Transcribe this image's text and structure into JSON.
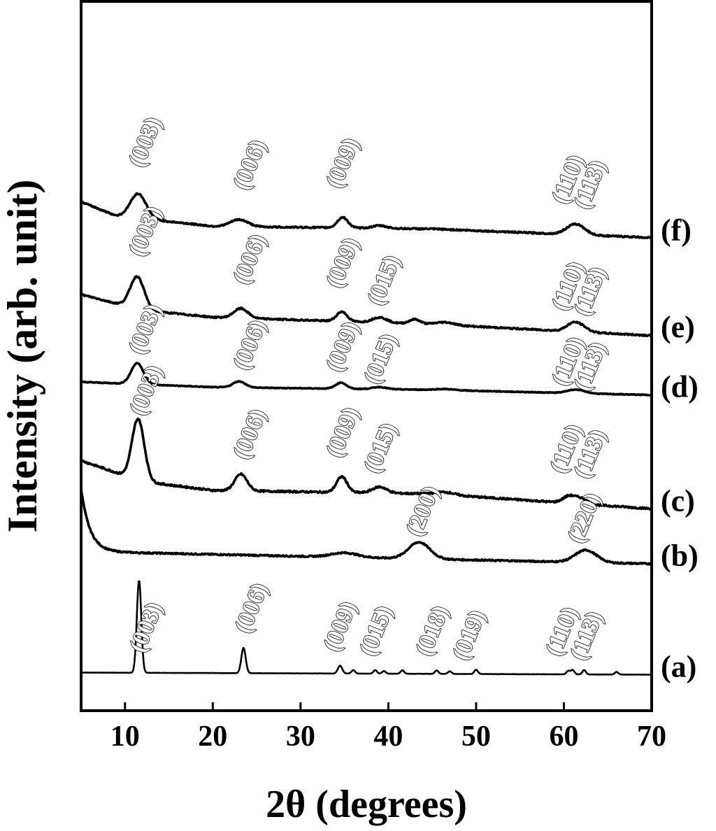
{
  "chart_data": {
    "type": "line",
    "xlabel": "2θ (degrees)",
    "ylabel": "Intensity (arb. unit)",
    "xlim": [
      5,
      70
    ],
    "xticks": [
      10,
      20,
      30,
      40,
      50,
      60,
      70
    ],
    "grid": false,
    "legend": "none",
    "series": [
      {
        "name": "(a)",
        "offset": 0,
        "baseline": [
          [
            5,
            0.18
          ],
          [
            70,
            0.06
          ]
        ],
        "noise": 0.005,
        "peaks": [
          {
            "x": 11.6,
            "h": 5.3,
            "w": 0.25
          },
          {
            "x": 23.5,
            "h": 1.45,
            "w": 0.25
          },
          {
            "x": 34.5,
            "h": 0.45,
            "w": 0.25
          },
          {
            "x": 36.0,
            "h": 0.2,
            "w": 0.2
          },
          {
            "x": 38.5,
            "h": 0.2,
            "w": 0.2
          },
          {
            "x": 39.5,
            "h": 0.15,
            "w": 0.2
          },
          {
            "x": 41.6,
            "h": 0.2,
            "w": 0.2
          },
          {
            "x": 45.5,
            "h": 0.2,
            "w": 0.2
          },
          {
            "x": 47.0,
            "h": 0.15,
            "w": 0.2
          },
          {
            "x": 50.0,
            "h": 0.25,
            "w": 0.2
          },
          {
            "x": 60.5,
            "h": 0.2,
            "w": 0.2
          },
          {
            "x": 61.0,
            "h": 0.25,
            "w": 0.2
          },
          {
            "x": 62.3,
            "h": 0.25,
            "w": 0.2
          },
          {
            "x": 66.0,
            "h": 0.15,
            "w": 0.2
          }
        ],
        "labels": [
          {
            "text": "(003)",
            "x": 12.1,
            "y": 1.25
          },
          {
            "text": "(006)",
            "x": 24.1,
            "y": 2.35
          },
          {
            "text": "(009)",
            "x": 34.2,
            "y": 1.3
          },
          {
            "text": "(015)",
            "x": 38.3,
            "y": 1.05
          },
          {
            "text": "(018)",
            "x": 44.7,
            "y": 1.05
          },
          {
            "text": "(019)",
            "x": 48.9,
            "y": 0.8
          },
          {
            "text": "(110)",
            "x": 59.5,
            "y": 1.05
          },
          {
            "text": "(113)",
            "x": 62.3,
            "y": 0.8
          }
        ]
      },
      {
        "name": "(b)",
        "offset": 7.0,
        "baseline": [
          [
            5,
            0.1
          ],
          [
            70,
            -0.6
          ]
        ],
        "noise": 0.04,
        "decay": {
          "amp": 3.6,
          "tau": 1.0
        },
        "peaks": [
          {
            "x": 35.0,
            "h": 0.25,
            "w": 1.5
          },
          {
            "x": 43.5,
            "h": 0.95,
            "w": 1.2
          },
          {
            "x": 62.5,
            "h": 0.7,
            "w": 1.2
          }
        ],
        "labels": [
          {
            "text": "(200)",
            "x": 43.6,
            "y": 7.9
          },
          {
            "text": "(220)",
            "x": 62.0,
            "y": 7.5
          }
        ]
      },
      {
        "name": "(c)",
        "offset": 10.1,
        "baseline": [
          [
            5,
            2.2
          ],
          [
            12,
            1.0
          ],
          [
            20,
            0.5
          ],
          [
            45,
            0.3
          ],
          [
            70,
            -0.55
          ]
        ],
        "noise": 0.05,
        "peaks": [
          {
            "x": 11.5,
            "h": 3.5,
            "w": 0.7
          },
          {
            "x": 23.2,
            "h": 0.95,
            "w": 0.7
          },
          {
            "x": 34.7,
            "h": 0.9,
            "w": 0.6
          },
          {
            "x": 39.0,
            "h": 0.35,
            "w": 0.8
          },
          {
            "x": 46.5,
            "h": 0.15,
            "w": 1.0
          },
          {
            "x": 60.6,
            "h": 0.4,
            "w": 0.7
          },
          {
            "x": 62.0,
            "h": 0.3,
            "w": 0.7
          }
        ],
        "labels": [
          {
            "text": "(003)",
            "x": 12.1,
            "y": 14.8
          },
          {
            "text": "(006)",
            "x": 23.9,
            "y": 12.3
          },
          {
            "text": "(009)",
            "x": 34.5,
            "y": 12.4
          },
          {
            "text": "(015)",
            "x": 38.8,
            "y": 11.5
          },
          {
            "text": "(110)",
            "x": 60.0,
            "y": 11.5
          },
          {
            "text": "(113)",
            "x": 62.7,
            "y": 11.2
          }
        ]
      },
      {
        "name": "(d)",
        "offset": 16.1,
        "baseline": [
          [
            5,
            0.7
          ],
          [
            20,
            0.4
          ],
          [
            45,
            0.25
          ],
          [
            70,
            -0.05
          ]
        ],
        "noise": 0.02,
        "peaks": [
          {
            "x": 11.4,
            "h": 1.2,
            "w": 0.7
          },
          {
            "x": 23.0,
            "h": 0.35,
            "w": 0.7
          },
          {
            "x": 34.6,
            "h": 0.35,
            "w": 0.6
          },
          {
            "x": 39.0,
            "h": 0.12,
            "w": 0.8
          },
          {
            "x": 46.5,
            "h": 0.06,
            "w": 1.0
          },
          {
            "x": 61.0,
            "h": 0.15,
            "w": 0.8
          },
          {
            "x": 62.0,
            "h": 0.1,
            "w": 0.8
          }
        ],
        "labels": [
          {
            "text": "(003)",
            "x": 12.0,
            "y": 18.3
          },
          {
            "text": "(006)",
            "x": 23.9,
            "y": 17.4
          },
          {
            "text": "(009)",
            "x": 34.5,
            "y": 17.3
          },
          {
            "text": "(015)",
            "x": 38.8,
            "y": 16.6
          },
          {
            "text": "(110)",
            "x": 60.2,
            "y": 16.5
          },
          {
            "text": "(113)",
            "x": 62.7,
            "y": 16.2
          }
        ]
      },
      {
        "name": "(e)",
        "offset": 19.5,
        "baseline": [
          [
            5,
            2.3
          ],
          [
            12,
            1.4
          ],
          [
            20,
            1.0
          ],
          [
            45,
            0.6
          ],
          [
            70,
            -0.05
          ]
        ],
        "noise": 0.04,
        "peaks": [
          {
            "x": 11.4,
            "h": 1.85,
            "w": 0.8
          },
          {
            "x": 23.2,
            "h": 0.55,
            "w": 0.8
          },
          {
            "x": 34.7,
            "h": 0.55,
            "w": 0.6
          },
          {
            "x": 39.0,
            "h": 0.3,
            "w": 0.8
          },
          {
            "x": 43.0,
            "h": 0.25,
            "w": 0.6
          },
          {
            "x": 46.5,
            "h": 0.15,
            "w": 1.0
          },
          {
            "x": 61.0,
            "h": 0.4,
            "w": 0.8
          },
          {
            "x": 62.0,
            "h": 0.25,
            "w": 0.8
          }
        ],
        "labels": [
          {
            "text": "(003)",
            "x": 12.0,
            "y": 23.9
          },
          {
            "text": "(006)",
            "x": 23.9,
            "y": 22.3
          },
          {
            "text": "(009)",
            "x": 34.5,
            "y": 22.1
          },
          {
            "text": "(015)",
            "x": 39.2,
            "y": 21.1
          },
          {
            "text": "(110)",
            "x": 60.2,
            "y": 20.8
          },
          {
            "text": "(113)",
            "x": 62.7,
            "y": 20.5
          }
        ]
      },
      {
        "name": "(f)",
        "offset": 25.1,
        "baseline": [
          [
            5,
            2.0
          ],
          [
            9,
            1.2
          ],
          [
            20,
            0.6
          ],
          [
            45,
            0.45
          ],
          [
            70,
            -0.05
          ]
        ],
        "noise": 0.04,
        "peaks": [
          {
            "x": 11.5,
            "h": 1.4,
            "w": 0.9
          },
          {
            "x": 23.0,
            "h": 0.4,
            "w": 1.0
          },
          {
            "x": 34.8,
            "h": 0.6,
            "w": 0.6
          },
          {
            "x": 39.0,
            "h": 0.15,
            "w": 0.8
          },
          {
            "x": 61.0,
            "h": 0.45,
            "w": 0.9
          },
          {
            "x": 62.0,
            "h": 0.25,
            "w": 0.8
          }
        ],
        "labels": [
          {
            "text": "(003)",
            "x": 12.0,
            "y": 29.0
          },
          {
            "text": "(006)",
            "x": 23.9,
            "y": 27.7
          },
          {
            "text": "(009)",
            "x": 34.5,
            "y": 27.8
          },
          {
            "text": "(110)",
            "x": 60.2,
            "y": 26.9
          },
          {
            "text": "(113)",
            "x": 62.7,
            "y": 26.6
          }
        ]
      }
    ]
  }
}
